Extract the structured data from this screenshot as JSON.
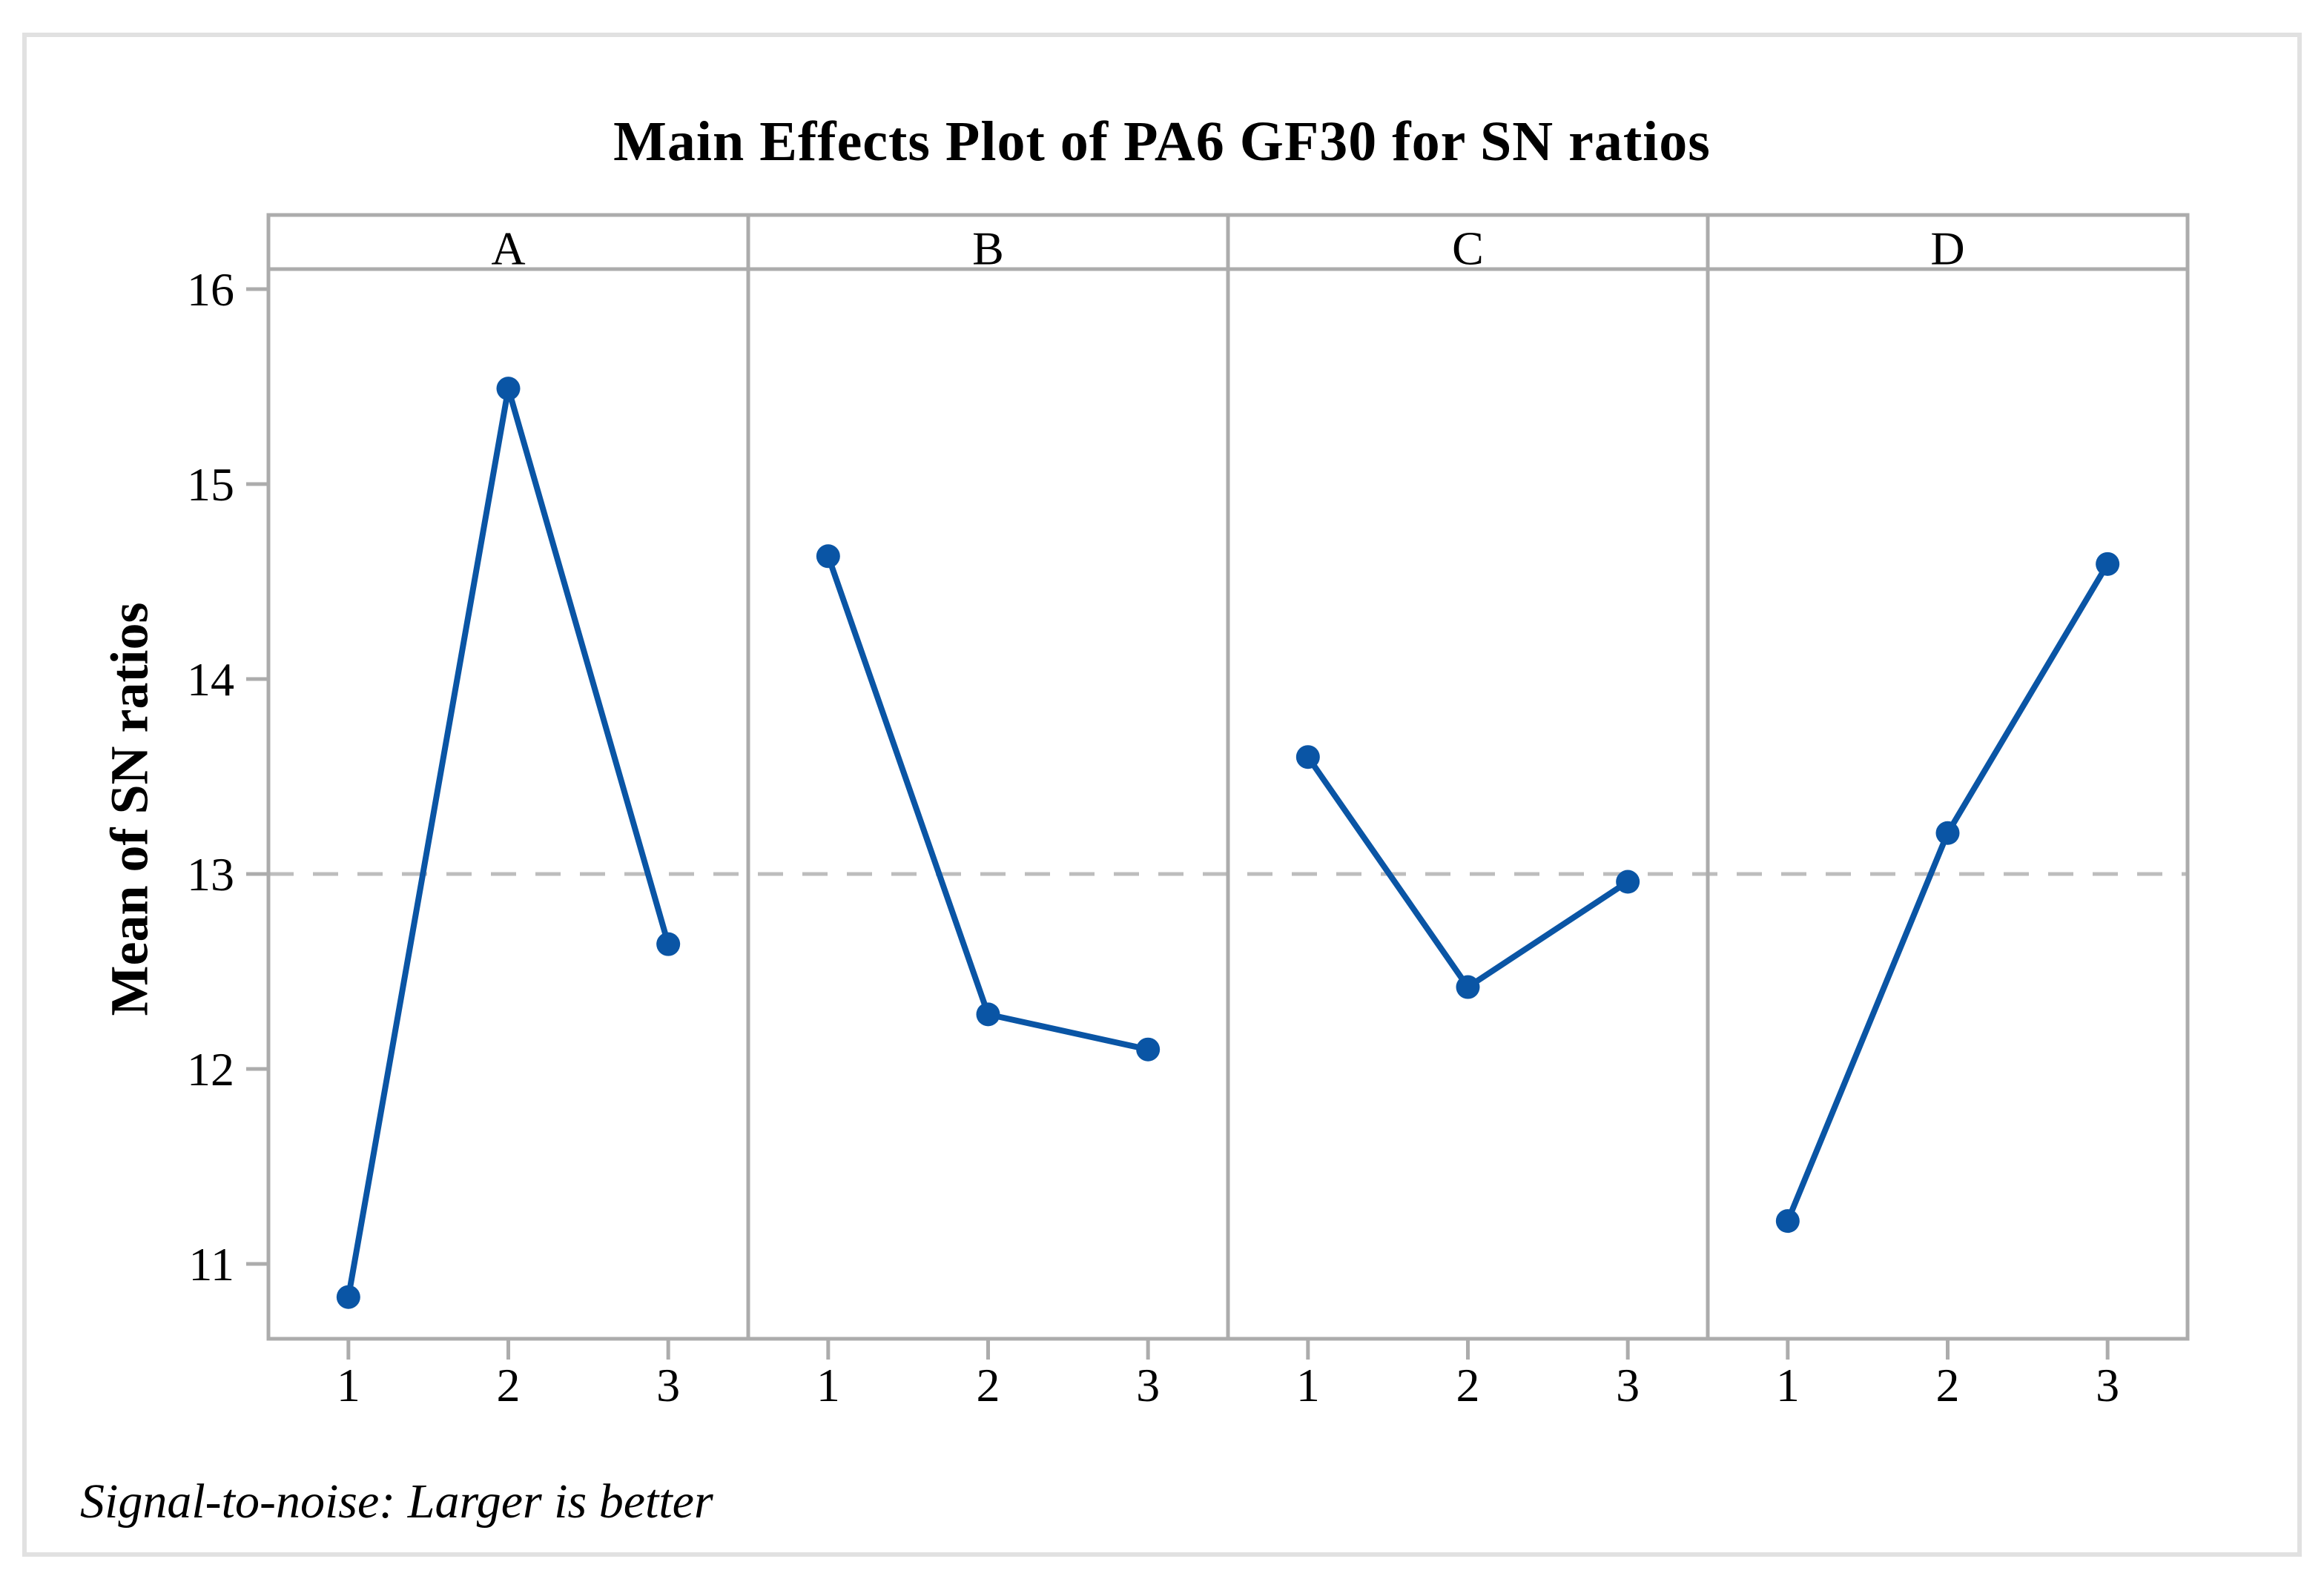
{
  "chart_data": {
    "type": "line",
    "title": "Main Effects Plot of PA6 GF30 for SN ratios",
    "ylabel": "Mean of SN ratios",
    "footnote": "Signal-to-noise: Larger is better",
    "panels": [
      {
        "label": "A",
        "x": [
          1,
          2,
          3
        ],
        "values": [
          10.83,
          15.49,
          12.64
        ]
      },
      {
        "label": "B",
        "x": [
          1,
          2,
          3
        ],
        "values": [
          14.63,
          12.28,
          12.1
        ]
      },
      {
        "label": "C",
        "x": [
          1,
          2,
          3
        ],
        "values": [
          13.6,
          12.42,
          12.96
        ]
      },
      {
        "label": "D",
        "x": [
          1,
          2,
          3
        ],
        "values": [
          11.22,
          13.21,
          14.59
        ]
      }
    ],
    "x_axis": {
      "tick_labels": [
        "1",
        "2",
        "3"
      ]
    },
    "y_axis": {
      "ticks": [
        16,
        15,
        14,
        13,
        12,
        11
      ],
      "range": [
        10.6,
        16.1
      ]
    },
    "reference_line": {
      "value": 13.0,
      "style": "dashed"
    },
    "legend": "none",
    "grid": "off",
    "colors": {
      "series": "#0A55A5",
      "frame": "#ACACAC",
      "reference": "#BDBDBD",
      "text": "#000000",
      "figure_border": "#E1E1E1",
      "background": "#FFFFFF"
    }
  }
}
